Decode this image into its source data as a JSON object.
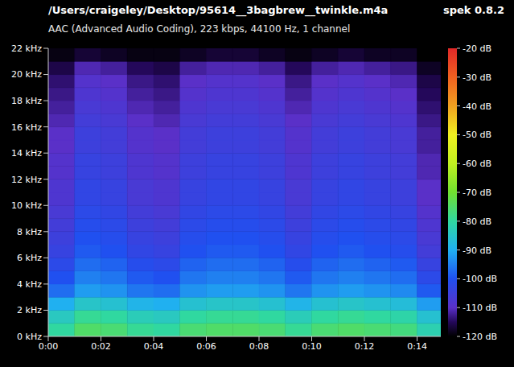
{
  "chart_data": {
    "type": "heatmap",
    "title": "/Users/craigeley/Desktop/95614__3bagbrew__twinkle.m4a",
    "subtitle": "AAC (Advanced Audio Coding), 223 kbps, 44100 Hz, 1 channel",
    "annotation": "spek 0.8.2",
    "grid": false,
    "xlim": [
      0,
      14.9
    ],
    "xticks": [
      {
        "value": 0,
        "label": "0:00"
      },
      {
        "value": 2,
        "label": "0:02"
      },
      {
        "value": 4,
        "label": "0:04"
      },
      {
        "value": 6,
        "label": "0:06"
      },
      {
        "value": 8,
        "label": "0:08"
      },
      {
        "value": 10,
        "label": "0:10"
      },
      {
        "value": 12,
        "label": "0:12"
      },
      {
        "value": 14,
        "label": "0:14"
      }
    ],
    "ylim": [
      0,
      22
    ],
    "yticks": [
      {
        "value": 0,
        "label": "0 kHz"
      },
      {
        "value": 2,
        "label": "2 kHz"
      },
      {
        "value": 4,
        "label": "4 kHz"
      },
      {
        "value": 6,
        "label": "6 kHz"
      },
      {
        "value": 8,
        "label": "8 kHz"
      },
      {
        "value": 10,
        "label": "10 kHz"
      },
      {
        "value": 12,
        "label": "12 kHz"
      },
      {
        "value": 14,
        "label": "14 kHz"
      },
      {
        "value": 16,
        "label": "16 kHz"
      },
      {
        "value": 18,
        "label": "18 kHz"
      },
      {
        "value": 20,
        "label": "20 kHz"
      },
      {
        "value": 22,
        "label": "22 kHz"
      }
    ],
    "time_bins": [
      0,
      1,
      2,
      3,
      4,
      5,
      6,
      7,
      8,
      9,
      10,
      11,
      12,
      13,
      14,
      14.9
    ],
    "freq_bins": [
      0,
      1,
      2,
      3,
      4,
      5,
      6,
      7,
      8,
      9,
      10,
      11,
      12,
      13,
      14,
      15,
      16,
      17,
      18,
      19,
      20,
      21,
      22
    ],
    "cells": [
      [
        -80,
        -75,
        -76,
        -79,
        -80,
        -76,
        -75,
        -75,
        -76,
        -79,
        -76,
        -75,
        -76,
        -77,
        -82
      ],
      [
        -84,
        -79,
        -80,
        -83,
        -84,
        -80,
        -79,
        -79,
        -80,
        -83,
        -80,
        -79,
        -80,
        -81,
        -86
      ],
      [
        -90,
        -85,
        -86,
        -89,
        -90,
        -86,
        -85,
        -85,
        -86,
        -89,
        -86,
        -85,
        -86,
        -87,
        -92
      ],
      [
        -97,
        -92,
        -93,
        -96,
        -97,
        -93,
        -92,
        -92,
        -93,
        -96,
        -93,
        -92,
        -93,
        -94,
        -99
      ],
      [
        -100,
        -95,
        -96,
        -99,
        -100,
        -96,
        -95,
        -95,
        -96,
        -99,
        -96,
        -95,
        -96,
        -97,
        -102
      ],
      [
        -102,
        -97,
        -98,
        -101,
        -102,
        -98,
        -97,
        -97,
        -98,
        -101,
        -98,
        -97,
        -98,
        -99,
        -104
      ],
      [
        -104,
        -99,
        -100,
        -103,
        -104,
        -100,
        -99,
        -99,
        -100,
        -103,
        -100,
        -99,
        -100,
        -101,
        -106
      ],
      [
        -105,
        -100,
        -101,
        -104,
        -105,
        -101,
        -100,
        -100,
        -101,
        -104,
        -101,
        -100,
        -101,
        -102,
        -107
      ],
      [
        -106,
        -101,
        -102,
        -105,
        -106,
        -102,
        -101,
        -101,
        -102,
        -105,
        -102,
        -101,
        -102,
        -103,
        -108
      ],
      [
        -107,
        -102,
        -103,
        -106,
        -107,
        -103,
        -102,
        -102,
        -103,
        -106,
        -103,
        -102,
        -103,
        -104,
        -109
      ],
      [
        -108,
        -103,
        -104,
        -107,
        -108,
        -104,
        -103,
        -103,
        -104,
        -107,
        -104,
        -103,
        -104,
        -105,
        -110
      ],
      [
        -108,
        -103,
        -104,
        -107,
        -108,
        -104,
        -103,
        -103,
        -104,
        -107,
        -104,
        -103,
        -104,
        -105,
        -110
      ],
      [
        -109,
        -104,
        -105,
        -108,
        -109,
        -105,
        -104,
        -104,
        -105,
        -108,
        -105,
        -104,
        -105,
        -106,
        -111
      ],
      [
        -109,
        -104,
        -105,
        -108,
        -109,
        -105,
        -104,
        -104,
        -105,
        -108,
        -105,
        -104,
        -105,
        -106,
        -111
      ],
      [
        -110,
        -105,
        -106,
        -109,
        -110,
        -106,
        -105,
        -105,
        -106,
        -109,
        -106,
        -105,
        -106,
        -107,
        -112
      ],
      [
        -110,
        -105,
        -106,
        -109,
        -110,
        -106,
        -105,
        -105,
        -106,
        -109,
        -106,
        -105,
        -106,
        -107,
        -112
      ],
      [
        -111,
        -106,
        -107,
        -110,
        -111,
        -107,
        -106,
        -106,
        -107,
        -110,
        -107,
        -106,
        -107,
        -108,
        -113
      ],
      [
        -112,
        -107,
        -108,
        -111,
        -112,
        -108,
        -107,
        -107,
        -108,
        -111,
        -108,
        -107,
        -108,
        -109,
        -114
      ],
      [
        -113,
        -108,
        -109,
        -112,
        -113,
        -109,
        -108,
        -108,
        -109,
        -112,
        -109,
        -108,
        -109,
        -110,
        -115
      ],
      [
        -114,
        -109,
        -110,
        -113,
        -114,
        -110,
        -109,
        -109,
        -110,
        -113,
        -110,
        -109,
        -110,
        -111,
        -116
      ],
      [
        -116,
        -111,
        -112,
        -115,
        -116,
        -112,
        -111,
        -111,
        -112,
        -115,
        -112,
        -111,
        -112,
        -113,
        -118
      ],
      [
        -119,
        -117,
        -118,
        -119,
        -119,
        -118,
        -117,
        -117,
        -118,
        -119,
        -118,
        -117,
        -118,
        -118,
        -120
      ]
    ],
    "colorbar": {
      "range": [
        -120,
        -20
      ],
      "ticks": [
        {
          "value": -20,
          "label": "-20 dB"
        },
        {
          "value": -30,
          "label": "-30 dB"
        },
        {
          "value": -40,
          "label": "-40 dB"
        },
        {
          "value": -50,
          "label": "-50 dB"
        },
        {
          "value": -60,
          "label": "-60 dB"
        },
        {
          "value": -70,
          "label": "-70 dB"
        },
        {
          "value": -80,
          "label": "-80 dB"
        },
        {
          "value": -90,
          "label": "-90 dB"
        },
        {
          "value": -100,
          "label": "-100 dB"
        },
        {
          "value": -110,
          "label": "-110 dB"
        },
        {
          "value": -120,
          "label": "-120 dB"
        }
      ]
    }
  }
}
